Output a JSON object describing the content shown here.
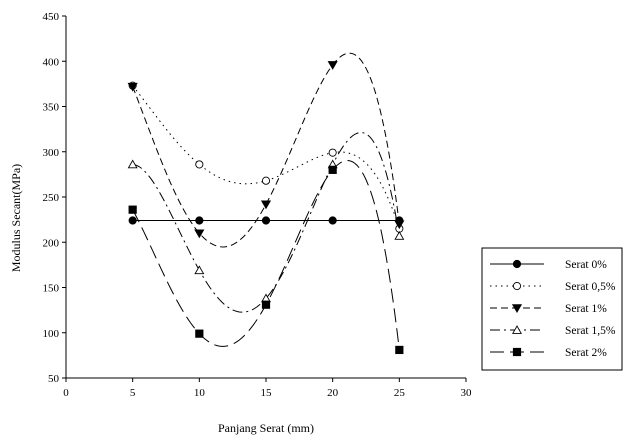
{
  "chart_data": {
    "type": "scatter",
    "xlabel": "Panjang Serat (mm)",
    "ylabel": "Modulus Secant(MPa)",
    "xlim": [
      0,
      30
    ],
    "ylim": [
      50,
      450
    ],
    "x_ticks": [
      "0",
      "5",
      "10",
      "15",
      "20",
      "25",
      "30"
    ],
    "y_ticks": [
      "50",
      "100",
      "150",
      "200",
      "250",
      "300",
      "350",
      "400",
      "450"
    ],
    "grid": false,
    "legend_position": "right",
    "trendlines": "polynomial",
    "x": [
      5,
      10,
      15,
      20,
      25
    ],
    "series": [
      {
        "name": "Serat 0%",
        "values": [
          224,
          224,
          224,
          224,
          224
        ],
        "marker": "circle-filled",
        "line": "solid",
        "color": "#000000"
      },
      {
        "name": "Serat 0,5%",
        "values": [
          373,
          286,
          268,
          299,
          215
        ],
        "marker": "circle-open",
        "line": "dotted",
        "color": "#000000"
      },
      {
        "name": "Serat 1%",
        "values": [
          372,
          210,
          242,
          396,
          220
        ],
        "marker": "triangle-down-filled",
        "line": "dashed",
        "color": "#000000"
      },
      {
        "name": "Serat 1,5%",
        "values": [
          286,
          169,
          138,
          286,
          207
        ],
        "marker": "triangle-up-open",
        "line": "dash-dot",
        "color": "#000000"
      },
      {
        "name": "Serat 2%",
        "values": [
          236,
          99,
          131,
          280,
          81
        ],
        "marker": "square-filled",
        "line": "long-dash",
        "color": "#000000"
      }
    ]
  }
}
